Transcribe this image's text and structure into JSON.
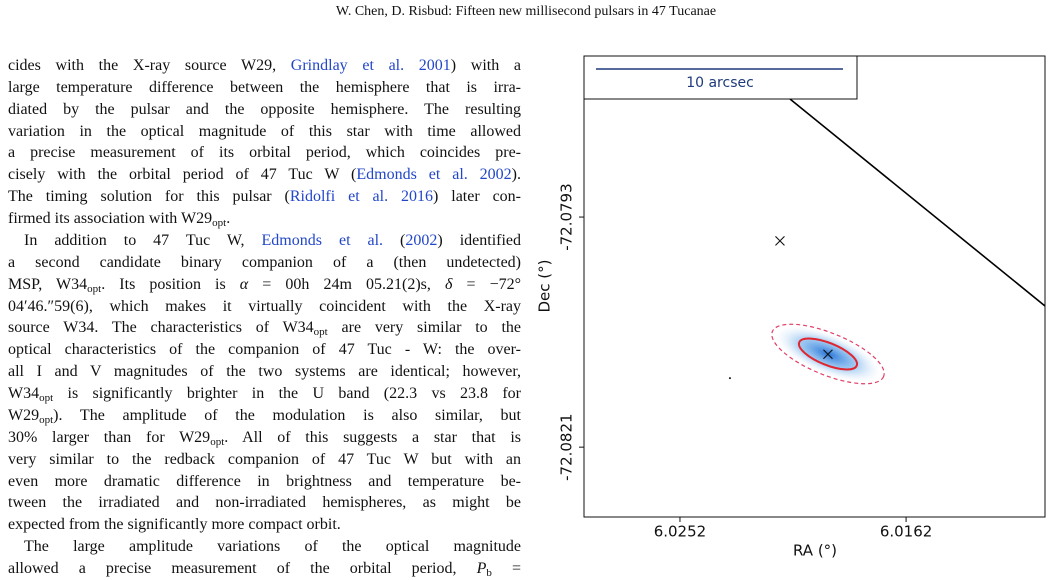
{
  "header": "W. Chen, D. Risbud: Fifteen new millisecond pulsars in 47 Tucanae",
  "paragraphs": [
    {
      "lines": [
        [
          "cides with the X-ray source W29, ",
          {
            "link": "Grindlay et al. 2001"
          },
          ") with a"
        ],
        [
          "large temperature difference between the hemisphere that is irra-"
        ],
        [
          "diated by the pulsar and the opposite hemisphere. The resulting"
        ],
        [
          "variation in the optical magnitude of this star with time allowed"
        ],
        [
          "a precise measurement of its orbital period, which coincides pre-"
        ],
        [
          "cisely with the orbital period of 47 Tuc W (",
          {
            "link": "Edmonds et al. 2002"
          },
          ")."
        ],
        [
          "The timing solution for this pulsar (",
          {
            "link": "Ridolfi et al. 2016"
          },
          ") later con-"
        ],
        [
          "firmed its association with W29",
          {
            "sub": "opt"
          },
          "."
        ]
      ]
    },
    {
      "lines": [
        [
          "In addition to 47 Tuc W, ",
          {
            "link": "Edmonds et al."
          },
          " (",
          {
            "link": "2002"
          },
          ") identified"
        ],
        [
          "a second candidate binary companion of a (then undetected)"
        ],
        [
          "MSP, W34",
          {
            "sub": "opt"
          },
          ". Its position is ",
          {
            "em": "α"
          },
          " = 00h 24m 05.21(2)s, ",
          {
            "em": "δ"
          },
          " = −72°"
        ],
        [
          "04′46.″59(6), which makes it virtually coincident with the X-ray"
        ],
        [
          "source W34. The characteristics of W34",
          {
            "sub": "opt"
          },
          " are very similar to the"
        ],
        [
          "optical characteristics of the companion of 47 Tuc - W: the over-"
        ],
        [
          "all I and V magnitudes of the two systems are identical; however,"
        ],
        [
          "W34",
          {
            "sub": "opt"
          },
          " is significantly brighter in the U band (22.3 vs 23.8 for"
        ],
        [
          "W29",
          {
            "sub": "opt"
          },
          "). The amplitude of the modulation is also similar, but"
        ],
        [
          "30% larger than for W29",
          {
            "sub": "opt"
          },
          ". All of this suggests a star that is"
        ],
        [
          "very similar to the redback companion of 47 Tuc W but with an"
        ],
        [
          "even more dramatic difference in brightness and temperature be-"
        ],
        [
          "tween the irradiated and non-irradiated hemispheres, as might be"
        ],
        [
          "expected from the significantly more compact orbit."
        ]
      ]
    },
    {
      "lines": [
        [
          "The large amplitude variations of the optical magnitude"
        ],
        [
          "allowed a precise measurement of the orbital period, ",
          {
            "em": "P"
          },
          {
            "sub": "b"
          },
          " ="
        ]
      ]
    }
  ],
  "figure": {
    "scale_bar": "10 arcsec",
    "xlabel": "RA (°)",
    "ylabel": "Dec (°)",
    "xlim": [
      6.02902,
      6.01067
    ],
    "ylim": [
      -72.08295,
      -72.07734
    ],
    "xticks": [
      6.0252,
      6.0162
    ],
    "yticks": [
      -72.0793,
      -72.0821
    ],
    "crosses": {
      "x": [
        6.02122,
        6.01931
      ],
      "y": [
        -72.07959,
        -72.08097
      ]
    },
    "dots": {
      "x": [
        6.02321
      ],
      "y": [
        -72.08126
      ]
    }
  }
}
